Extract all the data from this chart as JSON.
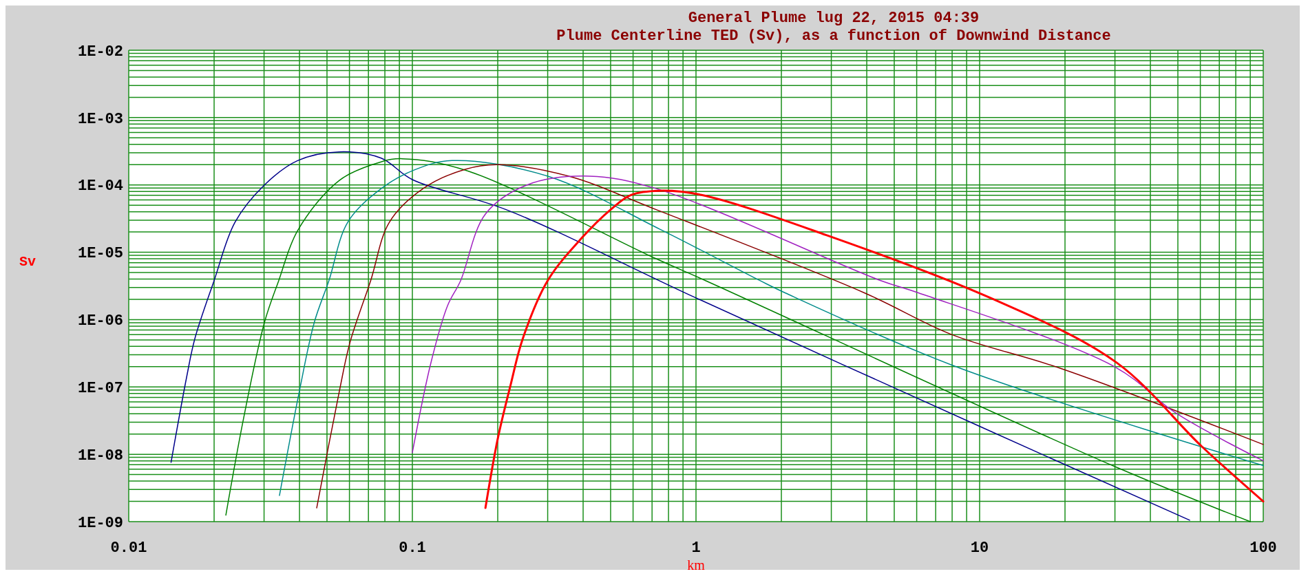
{
  "chart_data": {
    "type": "line",
    "title": "General Plume  lug 22, 2015 04:39",
    "subtitle": "Plume Centerline TED (Sv), as a function of Downwind Distance",
    "xlabel": "km",
    "ylabel": "Sv",
    "log": "xy",
    "grid": true,
    "xlim": [
      0.01,
      100
    ],
    "xticks": [
      0.01,
      0.1,
      1,
      10,
      100
    ],
    "ylim": [
      1e-09,
      0.01
    ],
    "yticks": [
      {
        "value": 1e-09,
        "label": "1E-09"
      },
      {
        "value": 1e-08,
        "label": "1E-08"
      },
      {
        "value": 1e-07,
        "label": "1E-07"
      },
      {
        "value": 1e-06,
        "label": "1E-06"
      },
      {
        "value": 1e-05,
        "label": "1E-05"
      },
      {
        "value": 0.0001,
        "label": "1E-04"
      },
      {
        "value": 0.001,
        "label": "1E-03"
      },
      {
        "value": 0.01,
        "label": "1E-02"
      }
    ],
    "series": [
      {
        "color": "#00008b",
        "x": [
          0.0141,
          0.016,
          0.0171,
          0.02,
          0.0237,
          0.0301,
          0.0394,
          0.0553,
          0.0776,
          0.1,
          0.214,
          1,
          10,
          55
        ],
        "values": [
          7.6e-09,
          1.4e-07,
          5.2e-07,
          3.8e-06,
          2.8e-05,
          0.0001,
          0.00023,
          0.00031,
          0.00025,
          0.00012,
          4.3e-05,
          2.1e-06,
          2.6e-08,
          1.05e-09
        ]
      },
      {
        "color": "#008000",
        "x": [
          0.022,
          0.0254,
          0.0301,
          0.0338,
          0.0394,
          0.0553,
          0.0776,
          0.092,
          0.153,
          0.724,
          1.08,
          29.9,
          90
        ],
        "values": [
          1.25e-09,
          3.4e-08,
          9.1e-07,
          3.8e-06,
          2.1e-05,
          0.000117,
          0.00022,
          0.000245,
          0.000167,
          8e-06,
          3.8e-06,
          6.6e-09,
          1e-09
        ]
      },
      {
        "color": "#008b8b",
        "x": [
          0.034,
          0.0401,
          0.0451,
          0.0508,
          0.0592,
          0.0776,
          0.1017,
          0.138,
          0.3,
          0.746,
          1.68,
          2.06,
          8.53,
          100
        ],
        "values": [
          2.45e-09,
          9.3e-08,
          9.1e-07,
          3.8e-06,
          2.8e-05,
          8.8e-05,
          0.000167,
          0.00023,
          0.000135,
          2.2e-05,
          3.8e-06,
          2.5e-06,
          1.9e-07,
          6.8e-09
        ]
      },
      {
        "color": "#8b0000",
        "x": [
          0.046,
          0.0553,
          0.0602,
          0.0713,
          0.083,
          0.109,
          0.153,
          0.2,
          0.356,
          0.724,
          3.92,
          7.97,
          19.2,
          100
        ],
        "values": [
          1.6e-09,
          8.7e-08,
          4.5e-07,
          3.8e-06,
          2.8e-05,
          8.8e-05,
          0.00017,
          0.0002,
          0.000135,
          4.3e-05,
          2.5e-06,
          6e-07,
          1.9e-07,
          1.4e-08
        ]
      },
      {
        "color": "#a020c0",
        "x": [
          0.1,
          0.116,
          0.133,
          0.148,
          0.181,
          0.254,
          0.42,
          0.724,
          4.48,
          6.08,
          29.9,
          49.6,
          100
        ],
        "values": [
          1.06e-08,
          2.2e-07,
          1.6e-06,
          3.8e-06,
          3.7e-05,
          0.0001,
          0.000135,
          8.8e-05,
          3.8e-06,
          2.5e-06,
          2e-07,
          4e-08,
          8e-09
        ]
      },
      {
        "color": "#ff0000",
        "x": [
          0.181,
          0.2,
          0.222,
          0.245,
          0.3,
          0.394,
          0.5,
          0.59,
          0.746,
          1.045,
          2.88,
          11.2,
          30.4,
          60.8,
          100
        ],
        "values": [
          1.6e-09,
          1.7e-08,
          1.07e-07,
          5.2e-07,
          3.8e-06,
          1.6e-05,
          4.3e-05,
          7.1e-05,
          8.2e-05,
          7.1e-05,
          1.8e-05,
          2e-06,
          2.3e-07,
          1.3e-08,
          2e-09
        ]
      }
    ]
  }
}
